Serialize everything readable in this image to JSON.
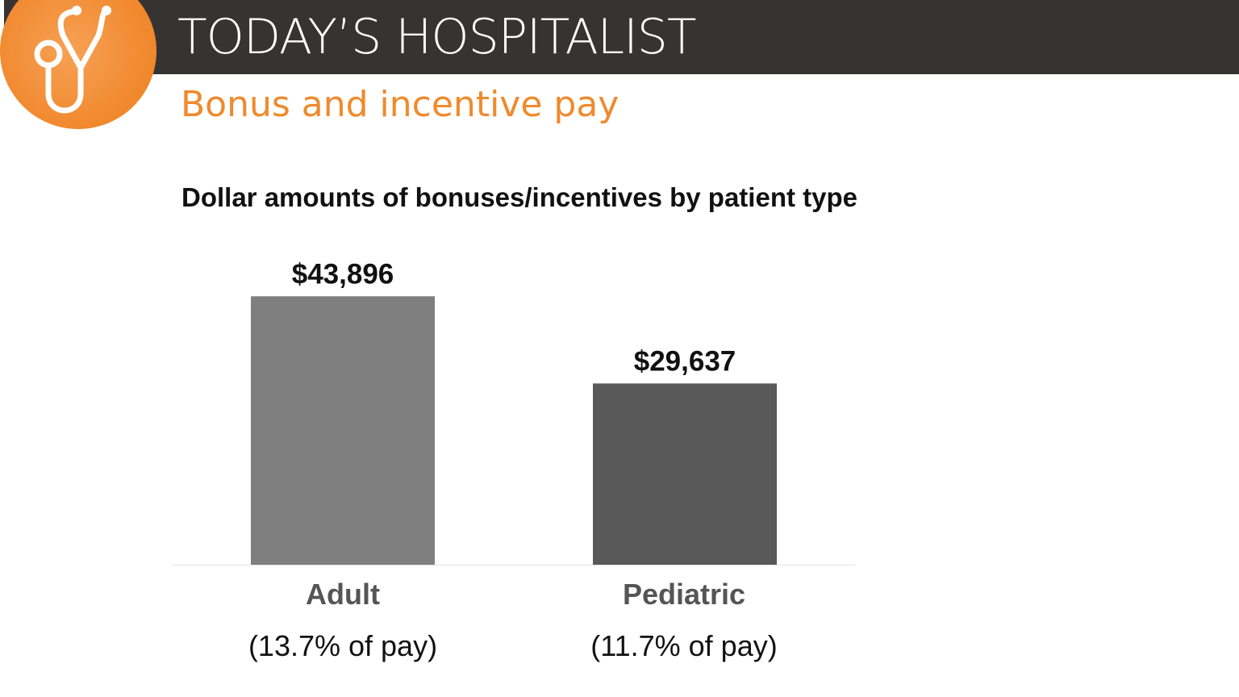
{
  "header": {
    "brand": "TODAY’S HOSPITALIST",
    "subtitle": "Bonus and incentive pay",
    "logo_icon": "stethoscope-icon"
  },
  "colors": {
    "header_bg": "#363433",
    "accent": "#f08a2c"
  },
  "chart_data": {
    "type": "bar",
    "title": "Dollar amounts of bonuses/incentives by patient type",
    "categories": [
      "Adult",
      "Pediatric"
    ],
    "category_sublabels": [
      "(13.7% of pay)",
      "(11.7% of pay)"
    ],
    "values": [
      43896,
      29637
    ],
    "data_labels": [
      "$43,896",
      "$29,637"
    ],
    "colors": [
      "#7f7f7f",
      "#595959"
    ],
    "xlabel": "",
    "ylabel": "",
    "ylim": [
      0,
      50000
    ],
    "grid": false,
    "legend": "none"
  }
}
